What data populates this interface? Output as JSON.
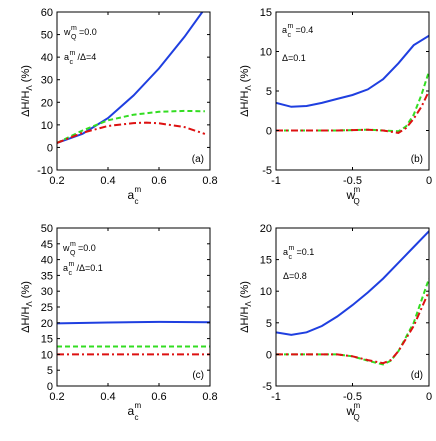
{
  "colors": {
    "blue": "#1f3fe0",
    "green": "#33dd22",
    "red": "#dd1111",
    "axis": "#000000"
  },
  "chart_data": [
    {
      "id": "a",
      "type": "line",
      "panel_label": "(a)",
      "xlabel": "a_c^m",
      "ylabel": "ΔH/H_Λ (%)",
      "xlim": [
        0.2,
        0.8
      ],
      "ylim": [
        -10,
        60
      ],
      "xticks": [
        0.2,
        0.4,
        0.6,
        0.8
      ],
      "xtick_labels": [
        "0.2",
        "0.4",
        "0.6",
        "0.8"
      ],
      "yticks": [
        -10,
        0,
        10,
        20,
        30,
        40,
        50,
        60
      ],
      "ytick_labels": [
        "-10",
        "0",
        "10",
        "20",
        "30",
        "40",
        "50",
        "60"
      ],
      "annotations": [
        {
          "base": "w",
          "sup": "m",
          "sub": "Q",
          "tail": "=0.0"
        },
        {
          "base": "a",
          "sup": "m",
          "sub": "c",
          "tail": "/Δ=4"
        }
      ],
      "series": [
        {
          "style": "solid",
          "color": "blue",
          "x": [
            0.2,
            0.3,
            0.4,
            0.5,
            0.6,
            0.7,
            0.77
          ],
          "y": [
            2,
            6,
            13,
            23,
            35,
            49,
            60
          ]
        },
        {
          "style": "dashed",
          "color": "green",
          "x": [
            0.2,
            0.3,
            0.4,
            0.5,
            0.6,
            0.7,
            0.78
          ],
          "y": [
            2,
            7.5,
            12,
            14.5,
            15.8,
            16.2,
            16
          ]
        },
        {
          "style": "dashdot",
          "color": "red",
          "x": [
            0.2,
            0.3,
            0.4,
            0.5,
            0.55,
            0.6,
            0.7,
            0.78
          ],
          "y": [
            2,
            6.5,
            9.5,
            10.8,
            11,
            10.7,
            9,
            6
          ]
        }
      ]
    },
    {
      "id": "b",
      "type": "line",
      "panel_label": "(b)",
      "xlabel": "w_Q^m",
      "ylabel": "ΔH/H_Λ (%)",
      "xlim": [
        -1,
        0
      ],
      "ylim": [
        -5,
        15
      ],
      "xticks": [
        -1,
        -0.5,
        0
      ],
      "xtick_labels": [
        "-1",
        "-0.5",
        "0"
      ],
      "yticks": [
        -5,
        0,
        5,
        10,
        15
      ],
      "ytick_labels": [
        "-5",
        "0",
        "5",
        "10",
        "15"
      ],
      "annotations": [
        {
          "base": "a",
          "sup": "m",
          "sub": "c",
          "tail": "=0.4"
        },
        {
          "base": "Δ",
          "sup": "",
          "sub": "",
          "tail": "=0.1"
        }
      ],
      "series": [
        {
          "style": "solid",
          "color": "blue",
          "x": [
            -1,
            -0.9,
            -0.8,
            -0.7,
            -0.6,
            -0.5,
            -0.4,
            -0.3,
            -0.2,
            -0.1,
            0
          ],
          "y": [
            3.5,
            3,
            3.1,
            3.5,
            4,
            4.5,
            5.2,
            6.5,
            8.5,
            10.8,
            12
          ]
        },
        {
          "style": "dashed",
          "color": "green",
          "x": [
            -1,
            -0.8,
            -0.6,
            -0.4,
            -0.3,
            -0.2,
            -0.15,
            -0.1,
            -0.05,
            0
          ],
          "y": [
            0,
            0,
            0,
            0.1,
            0,
            -0.1,
            0.5,
            2,
            4.5,
            7.5
          ]
        },
        {
          "style": "dashdot",
          "color": "red",
          "x": [
            -1,
            -0.8,
            -0.6,
            -0.4,
            -0.3,
            -0.2,
            -0.15,
            -0.1,
            -0.05,
            0
          ],
          "y": [
            0,
            0,
            0,
            0.1,
            0,
            -0.3,
            0.3,
            1.5,
            3,
            5
          ]
        }
      ]
    },
    {
      "id": "c",
      "type": "line",
      "panel_label": "(c)",
      "xlabel": "a_c^m",
      "ylabel": "ΔH/H_Λ (%)",
      "xlim": [
        0.2,
        0.8
      ],
      "ylim": [
        0,
        50
      ],
      "xticks": [
        0.2,
        0.4,
        0.6,
        0.8
      ],
      "xtick_labels": [
        "0.2",
        "0.4",
        "0.6",
        "0.8"
      ],
      "yticks": [
        0,
        5,
        10,
        15,
        20,
        25,
        30,
        35,
        40,
        45,
        50
      ],
      "ytick_labels": [
        "0",
        "5",
        "10",
        "15",
        "20",
        "25",
        "30",
        "35",
        "40",
        "45",
        "50"
      ],
      "annotations": [
        {
          "base": "w",
          "sup": "m",
          "sub": "Q",
          "tail": "=0.0"
        },
        {
          "base": "a",
          "sup": "m",
          "sub": "c",
          "tail": "/Δ=0.1"
        }
      ],
      "series": [
        {
          "style": "solid",
          "color": "blue",
          "x": [
            0.2,
            0.4,
            0.6,
            0.8
          ],
          "y": [
            19.8,
            20.1,
            20.3,
            20.2
          ]
        },
        {
          "style": "dashed",
          "color": "green",
          "x": [
            0.2,
            0.4,
            0.6,
            0.8
          ],
          "y": [
            12.5,
            12.5,
            12.5,
            12.5
          ]
        },
        {
          "style": "dashdot",
          "color": "red",
          "x": [
            0.2,
            0.4,
            0.6,
            0.8
          ],
          "y": [
            10,
            10,
            10,
            10
          ]
        }
      ]
    },
    {
      "id": "d",
      "type": "line",
      "panel_label": "(d)",
      "xlabel": "w_Q^m",
      "ylabel": "ΔH/H_Λ (%)",
      "xlim": [
        -1,
        0
      ],
      "ylim": [
        -5,
        20
      ],
      "xticks": [
        -1,
        -0.5,
        0
      ],
      "xtick_labels": [
        "-1",
        "-0.5",
        "0"
      ],
      "yticks": [
        -5,
        0,
        5,
        10,
        15,
        20
      ],
      "ytick_labels": [
        "-5",
        "0",
        "5",
        "10",
        "15",
        "20"
      ],
      "annotations": [
        {
          "base": "a",
          "sup": "m",
          "sub": "c",
          "tail": "=0.1"
        },
        {
          "base": "Δ",
          "sup": "",
          "sub": "",
          "tail": "=0.8"
        }
      ],
      "series": [
        {
          "style": "solid",
          "color": "blue",
          "x": [
            -1,
            -0.9,
            -0.8,
            -0.7,
            -0.6,
            -0.5,
            -0.4,
            -0.3,
            -0.2,
            -0.1,
            0
          ],
          "y": [
            3.5,
            3.1,
            3.5,
            4.5,
            6,
            7.8,
            9.8,
            12,
            14.5,
            17,
            19.5
          ]
        },
        {
          "style": "dashed",
          "color": "green",
          "x": [
            -1,
            -0.8,
            -0.6,
            -0.5,
            -0.4,
            -0.3,
            -0.25,
            -0.2,
            -0.1,
            0
          ],
          "y": [
            0,
            0,
            0,
            -0.3,
            -1,
            -1.6,
            -1,
            0.5,
            5,
            12
          ]
        },
        {
          "style": "dashdot",
          "color": "red",
          "x": [
            -1,
            -0.8,
            -0.6,
            -0.5,
            -0.4,
            -0.3,
            -0.25,
            -0.2,
            -0.1,
            0
          ],
          "y": [
            0,
            0,
            0,
            -0.3,
            -0.9,
            -1.4,
            -0.9,
            0.5,
            4.5,
            10
          ]
        }
      ]
    }
  ]
}
